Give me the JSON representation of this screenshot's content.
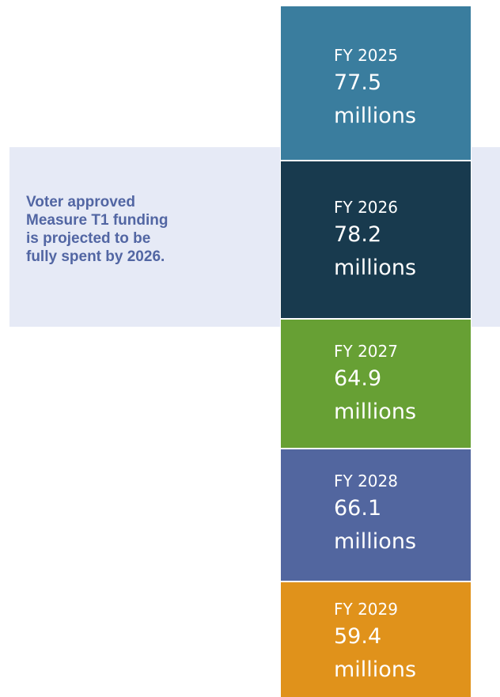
{
  "note": {
    "text": "Voter approved\nMeasure T1 funding\nis projected to be\nfully spent by 2026."
  },
  "blocks": [
    {
      "fy": "FY 2025",
      "amount": "77.5",
      "unit": "millions",
      "color": "#3a7d9e"
    },
    {
      "fy": "FY 2026",
      "amount": "78.2",
      "unit": "millions",
      "color": "#183a4e"
    },
    {
      "fy": "FY 2027",
      "amount": "64.9",
      "unit": "millions",
      "color": "#67a034"
    },
    {
      "fy": "FY 2028",
      "amount": "66.1",
      "unit": "millions",
      "color": "#52669f"
    },
    {
      "fy": "FY 2029",
      "amount": "59.4",
      "unit": "millions",
      "color": "#e0921b"
    }
  ],
  "colors": {
    "band": "#e6eaf6",
    "note_text": "#5266a3"
  }
}
